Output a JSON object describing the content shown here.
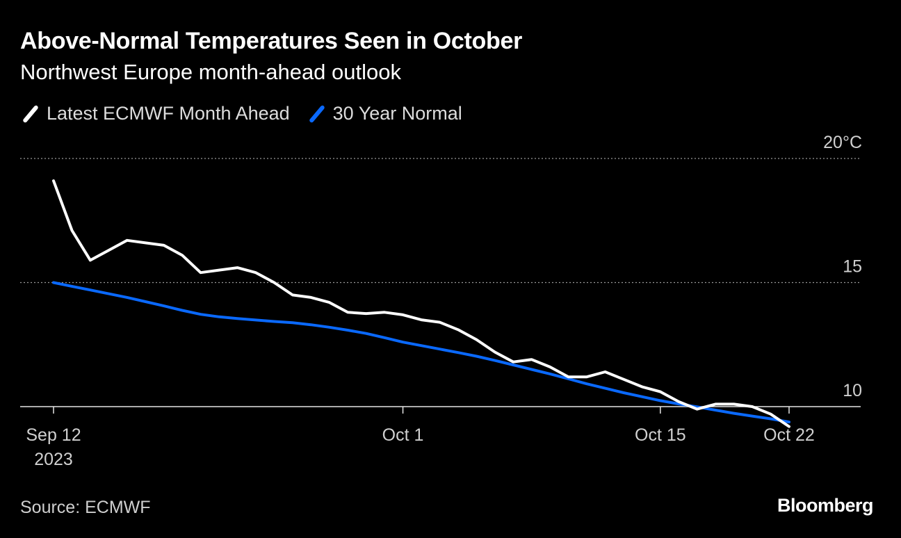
{
  "chart_data": {
    "type": "line",
    "title": "Above-Normal Temperatures Seen in October",
    "subtitle": "Northwest Europe month-ahead outlook",
    "ylabel": "°C",
    "ylim": [
      10,
      20
    ],
    "y_ticks": [
      {
        "value": 20,
        "label": "20°C"
      },
      {
        "value": 15,
        "label": "15"
      },
      {
        "value": 10,
        "label": "10"
      }
    ],
    "x_start": "2023-09-12",
    "x_end": "2023-10-22",
    "x_ticks": [
      {
        "day": 0,
        "label": "Sep 12",
        "sublabel": "2023"
      },
      {
        "day": 19,
        "label": "Oct 1",
        "sublabel": ""
      },
      {
        "day": 33,
        "label": "Oct 15",
        "sublabel": ""
      },
      {
        "day": 40,
        "label": "Oct 22",
        "sublabel": ""
      }
    ],
    "legend_position": "top-left",
    "series": [
      {
        "name": "Latest ECMWF Month Ahead",
        "color": "#ffffff",
        "values": [
          19.1,
          17.1,
          15.9,
          16.3,
          16.7,
          16.6,
          16.5,
          16.1,
          15.4,
          15.5,
          15.6,
          15.4,
          15.0,
          14.5,
          14.4,
          14.2,
          13.8,
          13.75,
          13.8,
          13.7,
          13.5,
          13.4,
          13.1,
          12.7,
          12.2,
          11.8,
          11.9,
          11.6,
          11.2,
          11.2,
          11.4,
          11.1,
          10.8,
          10.6,
          10.2,
          9.9,
          10.1,
          10.1,
          10.0,
          9.7,
          9.2
        ]
      },
      {
        "name": "30 Year Normal",
        "color": "#0a69ff",
        "values": [
          15.0,
          14.85,
          14.7,
          14.55,
          14.4,
          14.23,
          14.06,
          13.88,
          13.72,
          13.62,
          13.55,
          13.49,
          13.43,
          13.38,
          13.3,
          13.2,
          13.08,
          12.95,
          12.78,
          12.6,
          12.46,
          12.32,
          12.18,
          12.03,
          11.86,
          11.68,
          11.5,
          11.32,
          11.12,
          10.92,
          10.74,
          10.56,
          10.4,
          10.24,
          10.11,
          9.99,
          9.86,
          9.73,
          9.62,
          9.51,
          9.38
        ]
      }
    ]
  },
  "footer": {
    "source": "Source: ECMWF",
    "brand": "Bloomberg"
  }
}
